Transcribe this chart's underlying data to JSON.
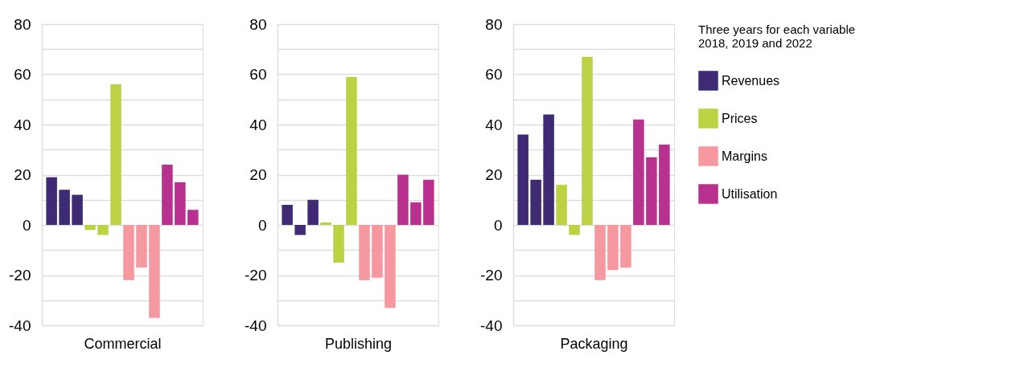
{
  "chart_data": [
    {
      "type": "bar",
      "xlabel": "Commercial",
      "categories": [
        null,
        null,
        null,
        null,
        null,
        null,
        null,
        null,
        null,
        null,
        null,
        null
      ],
      "series": [
        {
          "color": "#3f2a74",
          "values": [
            19,
            14,
            12,
            null,
            null,
            null,
            null,
            null,
            null,
            null,
            null,
            null
          ]
        },
        {
          "color": "#bdd243",
          "values": [
            null,
            null,
            null,
            -2,
            -4,
            56,
            null,
            null,
            null,
            null,
            null,
            null
          ]
        },
        {
          "color": "#f598a0",
          "values": [
            null,
            null,
            null,
            null,
            null,
            null,
            -22,
            -17,
            -37,
            null,
            null,
            null
          ]
        },
        {
          "color": "#b8318f",
          "values": [
            null,
            null,
            null,
            null,
            null,
            null,
            null,
            null,
            null,
            24,
            17,
            6
          ]
        }
      ],
      "ylim": [
        -40,
        80
      ],
      "yticks": [
        -40,
        {
          "value": -30,
          "label": null
        },
        -20,
        {
          "value": -10,
          "label": null
        },
        0,
        {
          "value": 10,
          "label": null
        },
        20,
        {
          "value": 30,
          "label": null
        },
        40,
        {
          "value": 50,
          "label": null
        },
        60,
        {
          "value": 70,
          "label": null
        },
        80
      ],
      "grid": "y",
      "legend": false
    },
    {
      "type": "bar",
      "xlabel": "Publishing",
      "categories": [
        null,
        null,
        null,
        null,
        null,
        null,
        null,
        null,
        null,
        null,
        null,
        null
      ],
      "series": [
        {
          "color": "#3f2a74",
          "values": [
            8,
            -4,
            10,
            null,
            null,
            null,
            null,
            null,
            null,
            null,
            null,
            null
          ]
        },
        {
          "color": "#bdd243",
          "values": [
            null,
            null,
            null,
            1,
            -15,
            59,
            null,
            null,
            null,
            null,
            null,
            null
          ]
        },
        {
          "color": "#f598a0",
          "values": [
            null,
            null,
            null,
            null,
            null,
            null,
            -22,
            -21,
            -33,
            null,
            null,
            null
          ]
        },
        {
          "color": "#b8318f",
          "values": [
            null,
            null,
            null,
            null,
            null,
            null,
            null,
            null,
            null,
            20,
            9,
            18
          ]
        }
      ],
      "ylim": [
        -40,
        80
      ],
      "yticks": [
        -40,
        {
          "value": -30,
          "label": null
        },
        -20,
        {
          "value": -10,
          "label": null
        },
        0,
        {
          "value": 10,
          "label": null
        },
        20,
        {
          "value": 30,
          "label": null
        },
        40,
        {
          "value": 50,
          "label": null
        },
        60,
        {
          "value": 70,
          "label": null
        },
        80
      ],
      "grid": "y",
      "legend": false
    },
    {
      "type": "bar",
      "xlabel": "Packaging",
      "categories": [
        null,
        null,
        null,
        null,
        null,
        null,
        null,
        null,
        null,
        null,
        null,
        null
      ],
      "series": [
        {
          "name": "Revenues",
          "color": "#3f2a74",
          "values": [
            36,
            18,
            44,
            null,
            null,
            null,
            null,
            null,
            null,
            null,
            null,
            null
          ]
        },
        {
          "name": "Prices",
          "color": "#bdd243",
          "values": [
            null,
            null,
            null,
            16,
            -4,
            67,
            null,
            null,
            null,
            null,
            null,
            null
          ]
        },
        {
          "name": "Margins",
          "color": "#f598a0",
          "values": [
            null,
            null,
            null,
            null,
            null,
            null,
            -22,
            -18,
            -17,
            null,
            null,
            null
          ]
        },
        {
          "name": "Utilisation",
          "color": "#b8318f",
          "values": [
            null,
            null,
            null,
            null,
            null,
            null,
            null,
            null,
            null,
            42,
            27,
            32
          ]
        }
      ],
      "ylim": [
        -40,
        80
      ],
      "yticks": [
        -40,
        {
          "value": -30,
          "label": null
        },
        -20,
        {
          "value": -10,
          "label": null
        },
        0,
        {
          "value": 10,
          "label": null
        },
        20,
        {
          "value": 30,
          "label": null
        },
        40,
        {
          "value": 50,
          "label": null
        },
        60,
        {
          "value": 70,
          "label": null
        },
        80
      ],
      "grid": "y",
      "legend": "right",
      "legend_title": [
        "Three years for each variable",
        "2018, 2019 and 2022"
      ]
    }
  ]
}
